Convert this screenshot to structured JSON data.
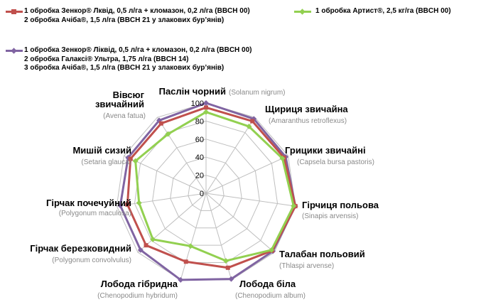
{
  "colors": {
    "series1": "#c0504d",
    "series2": "#8064a2",
    "series3": "#92d050",
    "grid": "#bfbfbf",
    "latin_text": "#8a8a8a"
  },
  "legend": {
    "s1": [
      "1 обробка Зенкор® Лквід, 0,5 л/га + кломазон, 0,2 л/га (BBCH 00)",
      "2 обробка Ачіба®, 1,5 л/га (BBCH 21 у злакових бур’янів)"
    ],
    "s3": [
      "1 обробка Артист®, 2,5 кг/га (BBCH 00)"
    ],
    "s2": [
      "1 обробка Зенкор® Ліквід, 0,5 л/га + кломазон, 0,2 л/га (BBCH 00)",
      "2 обробка Галаксі® Ультра, 1,75 л/га (BBCH 14)",
      "3 обробка Ачіба®, 1,5 л/га (BBCH 21 у злакових бур’янів)"
    ]
  },
  "chart_data": {
    "type": "radar",
    "categories": [
      {
        "name": "Паслін чорний",
        "latin": "(Solanum nigrum)"
      },
      {
        "name": "Щириця звичайна",
        "latin": "(Amaranthus retroflexus)"
      },
      {
        "name": "Грицики звичайні",
        "latin": "(Capsela bursa pastoris)"
      },
      {
        "name": "Гірчиця польова",
        "latin": "(Sinapis arvensis)"
      },
      {
        "name": "Талабан польовий",
        "latin": "(Thlaspi arvense)"
      },
      {
        "name": "Лобода біла",
        "latin": "(Chenopodium album)"
      },
      {
        "name": "Лобода гібридна",
        "latin": "(Chenopodium hybridum)"
      },
      {
        "name": "Гірчак березковидний",
        "latin": "(Polygonum convolvulus)"
      },
      {
        "name": "Гірчак почечуйний",
        "latin": "(Polygonum maculosa)"
      },
      {
        "name": "Мишій сизий",
        "latin": "(Setaria glauca)"
      },
      {
        "name": "Вівсюг звичайний",
        "latin": "(Avena fatua)"
      }
    ],
    "series": [
      {
        "key": "s1",
        "values": [
          95,
          95,
          95,
          100,
          97,
          86,
          79,
          88,
          88,
          92,
          92
        ]
      },
      {
        "key": "s2",
        "values": [
          100,
          98,
          97,
          100,
          98,
          99,
          100,
          96,
          96,
          95,
          96
        ]
      },
      {
        "key": "s3",
        "values": [
          90,
          88,
          93,
          98,
          96,
          78,
          61,
          78,
          75,
          86,
          78
        ]
      }
    ],
    "r_axis": {
      "min": 0,
      "max": 100,
      "ticks": [
        0,
        20,
        40,
        60,
        80,
        100
      ]
    },
    "grid": true
  }
}
